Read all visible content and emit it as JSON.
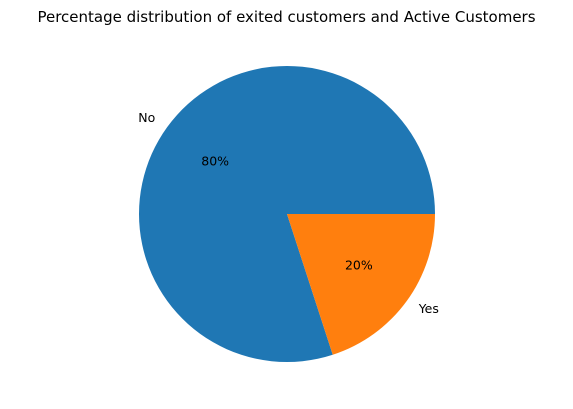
{
  "chart_data": {
    "type": "pie",
    "title": "Percentage distribution of exited customers and Active Customers",
    "slices": [
      {
        "label": "No",
        "value": 80,
        "pct_label": "80%",
        "color": "#1f77b4"
      },
      {
        "label": "Yes",
        "value": 20,
        "pct_label": "20%",
        "color": "#ff7f0e"
      }
    ],
    "start_angle_deg": 0,
    "direction": "counterclockwise",
    "legend": "none"
  }
}
